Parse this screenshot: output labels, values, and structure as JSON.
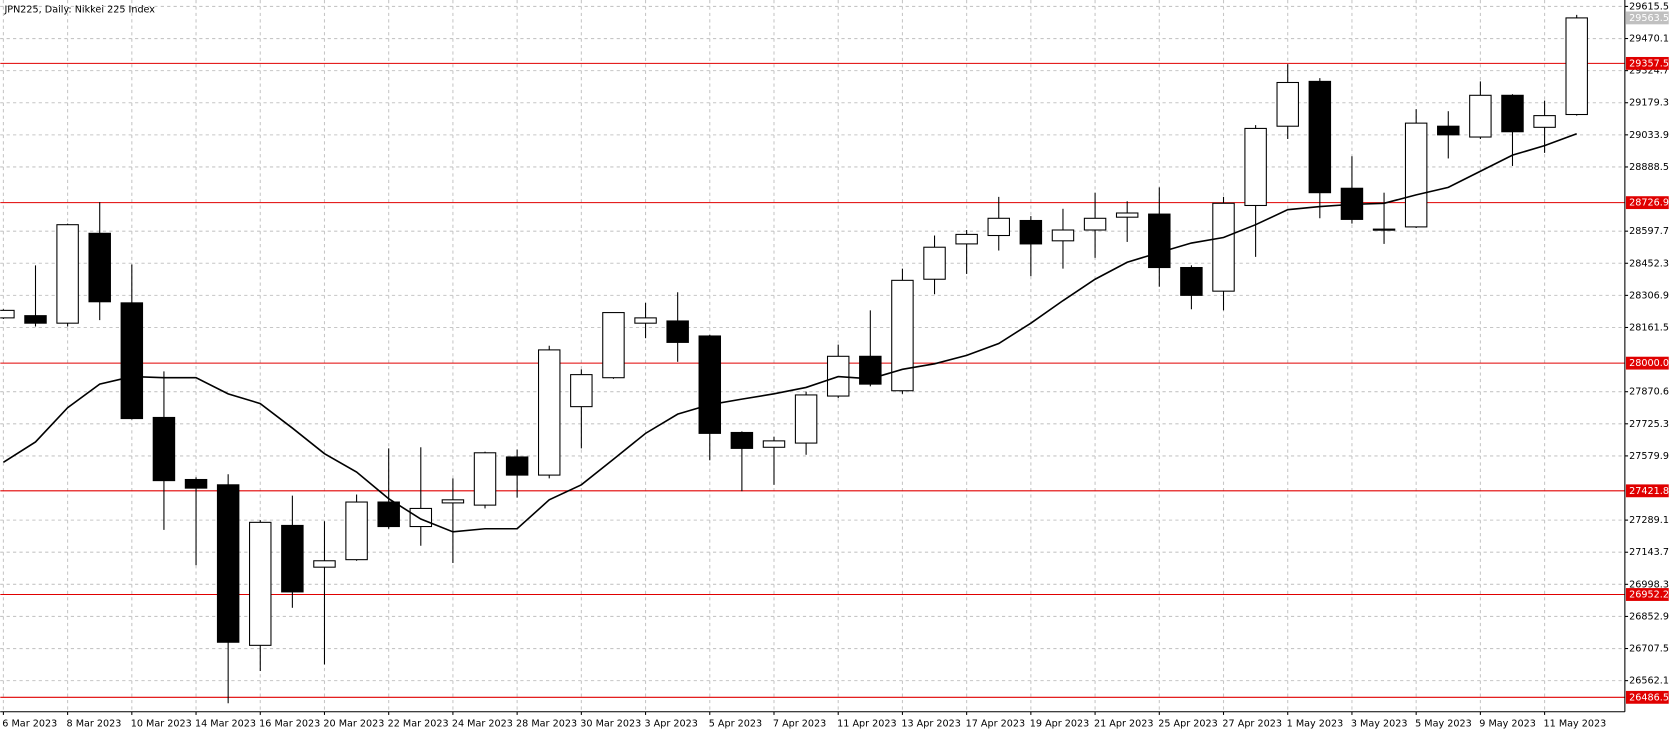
{
  "chart_data": {
    "type": "candlestick",
    "title": "JPN225, Daily:  Nikkei 225 Index",
    "categories": [
      "6 Mar 2023",
      null,
      "8 Mar 2023",
      null,
      "10 Mar 2023",
      null,
      "14 Mar 2023",
      null,
      "16 Mar 2023",
      null,
      "20 Mar 2023",
      null,
      "22 Mar 2023",
      null,
      "24 Mar 2023",
      null,
      "28 Mar 2023",
      null,
      "30 Mar 2023",
      null,
      "3 Apr 2023",
      null,
      "5 Apr 2023",
      null,
      "7 Apr 2023",
      null,
      "11 Apr 2023",
      null,
      "13 Apr 2023",
      null,
      "17 Apr 2023",
      null,
      "19 Apr 2023",
      null,
      "21 Apr 2023",
      null,
      "25 Apr 2023",
      null,
      "27 Apr 2023",
      null,
      "1 May 2023",
      null,
      "3 May 2023",
      null,
      "5 May 2023",
      null,
      "9 May 2023",
      null,
      "11 May 2023",
      null
    ],
    "open": [
      28205,
      28215,
      28181,
      28588,
      28273,
      27754,
      27473,
      27449,
      26722,
      27265,
      27076,
      27110,
      27371,
      27260,
      27367,
      27357,
      27575,
      27493,
      27803,
      27934,
      28181,
      28191,
      28123,
      27686,
      27619,
      27638,
      27851,
      28031,
      27875,
      28380,
      28540,
      28578,
      28646,
      28554,
      28603,
      28661,
      28675,
      28433,
      28326,
      28714,
      29073,
      29276,
      28792,
      28607,
      28617,
      29073,
      29024,
      29213,
      29068,
      29126
    ],
    "high": [
      28244,
      28443,
      28632,
      28729,
      28447,
      27963,
      27483,
      27497,
      27289,
      27400,
      27284,
      27405,
      27614,
      27619,
      27478,
      27599,
      27609,
      28079,
      27972,
      28229,
      28273,
      28321,
      28128,
      27691,
      27667,
      27871,
      28084,
      28239,
      28428,
      28578,
      28603,
      28753,
      28666,
      28699,
      28772,
      28733,
      28796,
      28443,
      28753,
      29078,
      29354,
      29291,
      28937,
      28772,
      29150,
      29141,
      29276,
      29218,
      29189,
      29577
    ],
    "low": [
      28200,
      28166,
      28166,
      28195,
      27745,
      27245,
      27085,
      26460,
      26606,
      26892,
      26635,
      27105,
      27250,
      27173,
      27095,
      27342,
      27391,
      27478,
      27614,
      27929,
      28113,
      28006,
      27560,
      27420,
      27449,
      27585,
      27842,
      27895,
      27861,
      28312,
      28404,
      28510,
      28394,
      28428,
      28477,
      28549,
      28346,
      28244,
      28239,
      28481,
      29015,
      28656,
      28632,
      28540,
      28612,
      28927,
      29015,
      28893,
      28952,
      29121
    ],
    "close": [
      28239,
      28181,
      28627,
      28278,
      27749,
      27468,
      27434,
      26736,
      27279,
      26964,
      27105,
      27371,
      27260,
      27342,
      27381,
      27594,
      27493,
      28060,
      27948,
      28229,
      28205,
      28094,
      27682,
      27614,
      27648,
      27856,
      28031,
      27905,
      28375,
      28525,
      28583,
      28656,
      28540,
      28603,
      28656,
      28680,
      28433,
      28307,
      28724,
      29063,
      29271,
      28772,
      28651,
      28603,
      29087,
      29034,
      29213,
      29048,
      29121,
      29563.5
    ],
    "bull_color": "#ffffff",
    "bear_color": "#000000",
    "overlay_line": {
      "color": "#000000",
      "values": [
        27551,
        27643,
        27798,
        27905,
        27939,
        27934,
        27934,
        27861,
        27817,
        27706,
        27590,
        27507,
        27386,
        27294,
        27236,
        27250,
        27250,
        27381,
        27449,
        27565,
        27682,
        27769,
        27812,
        27837,
        27861,
        27890,
        27939,
        27929,
        27972,
        27997,
        28035,
        28089,
        28181,
        28283,
        28380,
        28457,
        28501,
        28544,
        28569,
        28627,
        28695,
        28709,
        28719,
        28724,
        28762,
        28796,
        28869,
        28942,
        28985,
        29039
      ]
    },
    "levels": [
      29357.5,
      28726.9,
      {
        "value": 28000,
        "label": "28000.0"
      },
      27421.8,
      26952.2,
      26486.5
    ],
    "level_color": "#e00000",
    "current_price_color": "#c0c0c0",
    "ylim": [
      26421.3,
      29644.6
    ],
    "yticks": [
      26562.1,
      26707.5,
      26852.9,
      26998.3,
      27143.7,
      27289.1,
      27579.9,
      27725.3,
      27870.6,
      28161.5,
      28306.9,
      28452.3,
      28597.7,
      28888.5,
      29033.9,
      29179.3,
      29324.7,
      29470.1,
      29615.5
    ],
    "grid": true
  }
}
